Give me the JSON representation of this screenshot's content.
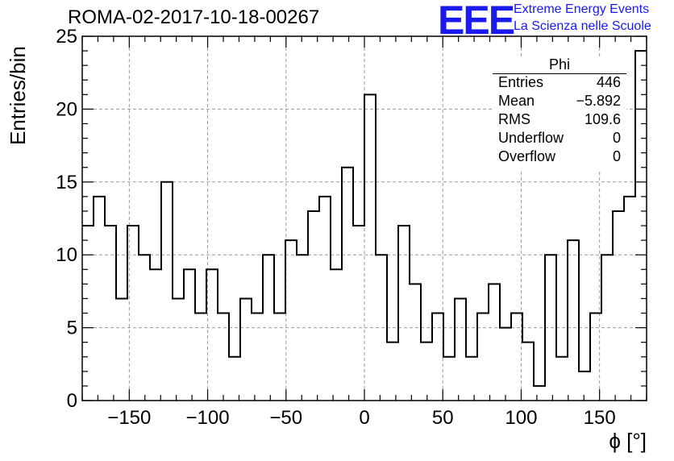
{
  "header": {
    "title": "ROMA-02-2017-10-18-00267",
    "logo_text": "EEE",
    "tagline_1": "Extreme Energy Events",
    "tagline_2": "La Scienza nelle Scuole"
  },
  "stats": {
    "title": "Phi",
    "rows": [
      {
        "name": "Entries",
        "value": "446"
      },
      {
        "name": "Mean",
        "value": "−5.892"
      },
      {
        "name": "RMS",
        "value": "109.6"
      },
      {
        "name": "Underflow",
        "value": "0"
      },
      {
        "name": "Overflow",
        "value": "0"
      }
    ]
  },
  "colors": {
    "accent": "#1a1aee",
    "line": "#000000",
    "grid": "#9a9a9a"
  },
  "chart_data": {
    "type": "bar",
    "style": "step-histogram",
    "xlabel": "ϕ [°]",
    "ylabel": "Entries/bin",
    "xlim": [
      -180,
      180
    ],
    "ylim": [
      0,
      25
    ],
    "bin_width": 7.2,
    "xticks": [
      -150,
      -100,
      -50,
      0,
      50,
      100,
      150
    ],
    "xtick_labels": [
      "−150",
      "−100",
      "−50",
      "0",
      "50",
      "100",
      "150"
    ],
    "yticks": [
      0,
      5,
      10,
      15,
      20,
      25
    ],
    "ytick_labels": [
      "0",
      "5",
      "10",
      "15",
      "20",
      "25"
    ],
    "grid": true,
    "legend": "none",
    "series": [
      {
        "values": [
          12,
          14,
          12,
          7,
          12,
          10,
          9,
          15,
          7,
          9,
          6,
          9,
          6,
          3,
          7,
          6,
          10,
          6,
          11,
          10,
          13,
          14,
          9,
          16,
          12,
          21,
          10,
          4,
          12,
          8,
          4,
          6,
          3,
          7,
          3,
          6,
          8,
          5,
          6,
          4,
          1,
          10,
          3,
          11,
          2,
          6,
          10,
          13,
          14,
          24
        ]
      }
    ]
  }
}
